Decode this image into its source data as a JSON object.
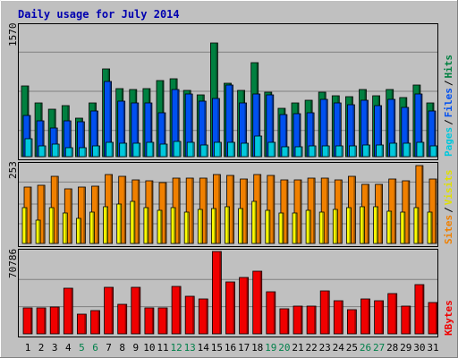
{
  "chart_data": [
    {
      "type": "bar",
      "title": "Daily usage for July 2014",
      "ymax_label": "1570",
      "ylim": [
        0,
        1570
      ],
      "legend": {
        "placement": "right-vertical",
        "items": [
          {
            "label": "Pages",
            "color": "#00c8dc"
          },
          {
            "label": "Files",
            "color": "#0050f0"
          },
          {
            "label": "Hits",
            "color": "#008040"
          }
        ]
      },
      "categories": [
        "1",
        "2",
        "3",
        "4",
        "5",
        "6",
        "7",
        "8",
        "9",
        "10",
        "11",
        "12",
        "13",
        "14",
        "15",
        "16",
        "17",
        "18",
        "19",
        "20",
        "21",
        "22",
        "23",
        "24",
        "25",
        "26",
        "27",
        "28",
        "29",
        "30",
        "31"
      ],
      "series": [
        {
          "name": "Hits",
          "color": "#008040",
          "values": [
            850,
            640,
            565,
            615,
            465,
            650,
            1050,
            815,
            805,
            815,
            915,
            935,
            800,
            740,
            1370,
            885,
            800,
            1125,
            775,
            585,
            640,
            680,
            770,
            730,
            720,
            810,
            730,
            810,
            715,
            860,
            650
          ]
        },
        {
          "name": "Files",
          "color": "#0050f0",
          "values": [
            500,
            435,
            345,
            435,
            415,
            545,
            900,
            670,
            640,
            645,
            530,
            805,
            750,
            665,
            695,
            860,
            645,
            755,
            740,
            505,
            515,
            525,
            690,
            650,
            625,
            680,
            615,
            685,
            590,
            750,
            545
          ]
        },
        {
          "name": "Pages",
          "color": "#00c8dc",
          "values": [
            220,
            125,
            150,
            105,
            110,
            130,
            175,
            165,
            160,
            170,
            155,
            185,
            175,
            135,
            175,
            175,
            165,
            250,
            170,
            120,
            120,
            125,
            130,
            130,
            130,
            140,
            140,
            165,
            160,
            175,
            125
          ]
        }
      ]
    },
    {
      "type": "bar",
      "ymax_label": "253",
      "ylim": [
        0,
        253
      ],
      "legend": {
        "placement": "right-vertical",
        "items": [
          {
            "label": "Sites",
            "color": "#f08000"
          },
          {
            "label": "Visits",
            "color": "#ffff00"
          }
        ]
      },
      "categories": [
        "1",
        "2",
        "3",
        "4",
        "5",
        "6",
        "7",
        "8",
        "9",
        "10",
        "11",
        "12",
        "13",
        "14",
        "15",
        "16",
        "17",
        "18",
        "19",
        "20",
        "21",
        "22",
        "23",
        "24",
        "25",
        "26",
        "27",
        "28",
        "29",
        "30",
        "31"
      ],
      "series": [
        {
          "name": "Sites",
          "color": "#f08000",
          "values": [
            182,
            186,
            216,
            174,
            182,
            183,
            221,
            216,
            205,
            200,
            196,
            211,
            210,
            210,
            222,
            218,
            206,
            222,
            219,
            205,
            204,
            210,
            210,
            205,
            217,
            190,
            190,
            206,
            200,
            250,
            207
          ]
        },
        {
          "name": "Visits",
          "color": "#ffff00",
          "values": [
            116,
            75,
            114,
            98,
            80,
            100,
            117,
            127,
            136,
            116,
            107,
            116,
            102,
            110,
            112,
            117,
            112,
            135,
            105,
            99,
            99,
            106,
            100,
            110,
            115,
            118,
            118,
            104,
            102,
            115,
            100
          ]
        }
      ]
    },
    {
      "type": "bar",
      "ymax_label": "70786",
      "ylim": [
        0,
        70786
      ],
      "legend": {
        "placement": "right-vertical",
        "items": [
          {
            "label": "KBytes",
            "color": "#f00000"
          }
        ]
      },
      "categories": [
        "1",
        "2",
        "3",
        "4",
        "5",
        "6",
        "7",
        "8",
        "9",
        "10",
        "11",
        "12",
        "13",
        "14",
        "15",
        "16",
        "17",
        "18",
        "19",
        "20",
        "21",
        "22",
        "23",
        "24",
        "25",
        "26",
        "27",
        "28",
        "29",
        "30",
        "31"
      ],
      "weekend_days": [
        "5",
        "6",
        "12",
        "13",
        "19",
        "20",
        "26",
        "27"
      ],
      "series": [
        {
          "name": "KBytes",
          "color": "#f00000",
          "values": [
            22300,
            22300,
            22900,
            39300,
            16700,
            20300,
            40000,
            25400,
            40000,
            22300,
            22300,
            40500,
            32200,
            30000,
            70786,
            44500,
            48600,
            53800,
            36500,
            21800,
            24200,
            23600,
            37300,
            28800,
            20500,
            29900,
            28500,
            34800,
            23700,
            42100,
            27200
          ]
        }
      ]
    }
  ]
}
